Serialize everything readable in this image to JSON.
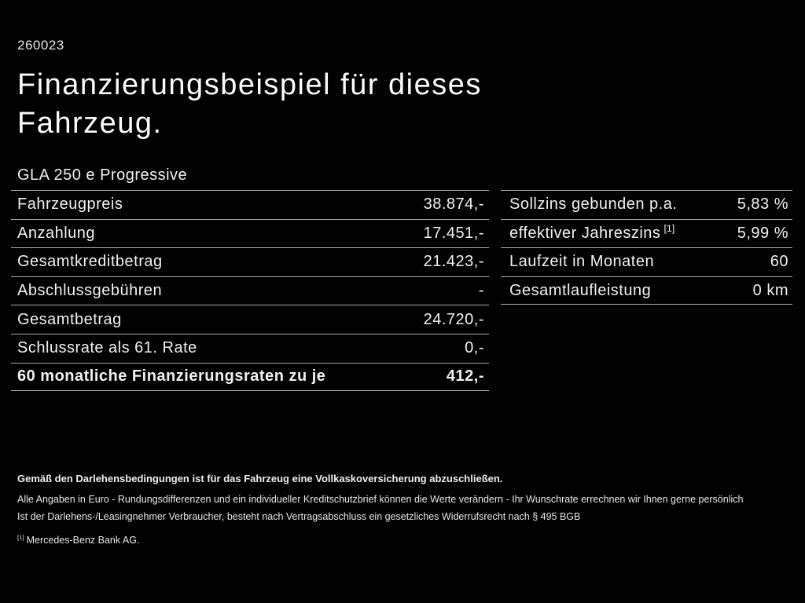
{
  "slide": {
    "id": "260023",
    "title": "Finanzierungsbeispiel für dieses Fahrzeug.",
    "model": "GLA 250 e Progressive"
  },
  "finance_table": {
    "rows": [
      {
        "label": "Fahrzeugpreis",
        "value": "38.874,-"
      },
      {
        "label": "Anzahlung",
        "value": "17.451,-"
      },
      {
        "label": "Gesamtkreditbetrag",
        "value": "21.423,-"
      },
      {
        "label": "Abschlussgebühren",
        "value": "-"
      },
      {
        "label": "Gesamtbetrag",
        "value": "24.720,-"
      },
      {
        "label": "Schlussrate als 61. Rate",
        "value": "0,-"
      },
      {
        "label": "60 monatliche Finanzierungsraten zu je",
        "value": "412,-",
        "bold": true
      }
    ]
  },
  "conditions_table": {
    "rows": [
      {
        "label": "Sollzins gebunden p.a.",
        "value": "5,83 %"
      },
      {
        "label": "effektiver Jahreszins",
        "footnote": "[1]",
        "value": "5,99 %"
      },
      {
        "label": "Laufzeit in Monaten",
        "value": "60"
      },
      {
        "label": "Gesamtlaufleistung",
        "value": "0 km"
      }
    ]
  },
  "footer": {
    "insurance_note": "Gemäß den Darlehensbedingungen ist für das Fahrzeug eine Vollkaskoversicherung abzuschließen.",
    "disclaimer_line1": "Alle Angaben in Euro - Rundungsdifferenzen und ein individueller Kreditschutzbrief können die Werte verändern - Ihr Wunschrate errechnen wir Ihnen gerne persönlich",
    "disclaimer_line2": "Ist der Darlehens-/Leasingnehmer Verbraucher, besteht nach Vertragsabschluss ein gesetzliches Widerrufsrecht nach § 495 BGB",
    "footnote_marker": "[1]",
    "footnote_text": "Mercedes-Benz Bank AG."
  },
  "colors": {
    "background": "#000000",
    "text": "#f2f2f2",
    "divider": "#ababab"
  }
}
